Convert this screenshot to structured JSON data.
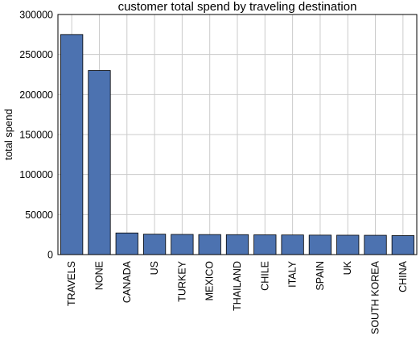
{
  "chart_data": {
    "type": "bar",
    "title": "customer total spend by traveling destination",
    "xlabel": "",
    "ylabel": "total spend",
    "categories": [
      "TRAVELS",
      "NONE",
      "CANADA",
      "US",
      "TURKEY",
      "MEXICO",
      "THAILAND",
      "CHILE",
      "ITALY",
      "SPAIN",
      "UK",
      "SOUTH KOREA",
      "CHINA"
    ],
    "values": [
      275000,
      230000,
      27000,
      25500,
      25200,
      25000,
      24900,
      24700,
      24500,
      24300,
      24200,
      24100,
      23700
    ],
    "ylim": [
      0,
      300000
    ],
    "yticks": [
      0,
      50000,
      100000,
      150000,
      200000,
      250000,
      300000
    ],
    "grid": true,
    "bar_color": "#4c72b0",
    "grid_color": "#cbcbcb",
    "x_tick_rotation": "vertical"
  }
}
